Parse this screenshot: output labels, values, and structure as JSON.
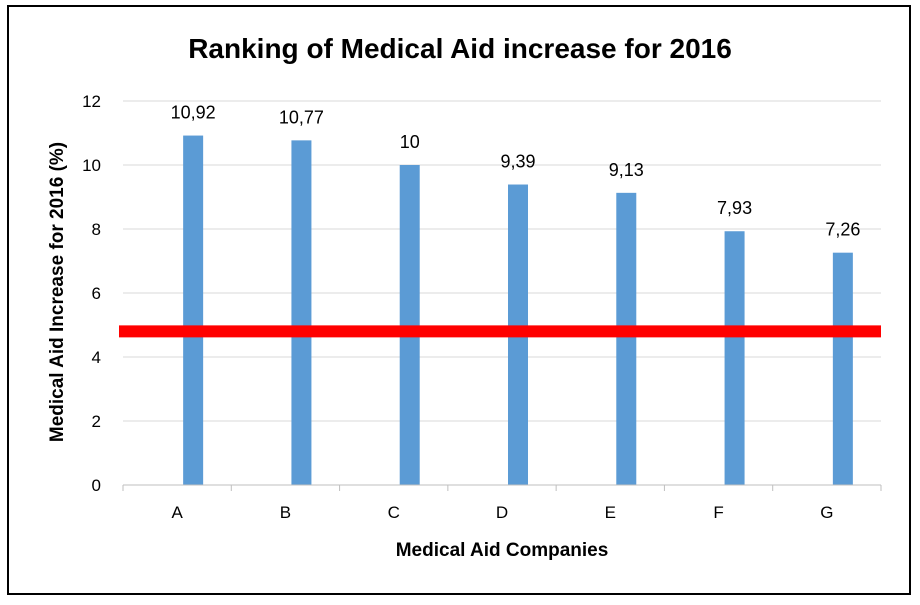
{
  "chart_data": {
    "type": "bar",
    "title": "Ranking of Medical Aid increase for 2016",
    "xlabel": "Medical Aid Companies",
    "ylabel": "Medical Aid Increase for 2016 (%)",
    "categories": [
      "A",
      "B",
      "C",
      "D",
      "E",
      "F",
      "G"
    ],
    "values": [
      10.92,
      10.77,
      10,
      9.39,
      9.13,
      7.93,
      7.26
    ],
    "data_labels": [
      "10,92",
      "10,77",
      "10",
      "9,39",
      "9,13",
      "7,93",
      "7,26"
    ],
    "ylim": [
      0,
      12
    ],
    "yticks": [
      0,
      2,
      4,
      6,
      8,
      10,
      12
    ],
    "ytick_labels": [
      "0",
      "2",
      "4",
      "6",
      "8",
      "10",
      "12"
    ],
    "grid": true,
    "legend": "none",
    "reference_line": {
      "value": 4.8,
      "color": "#ff0000"
    },
    "colors": {
      "bar": "#5b9bd5",
      "grid": "#d9d9d9"
    }
  }
}
